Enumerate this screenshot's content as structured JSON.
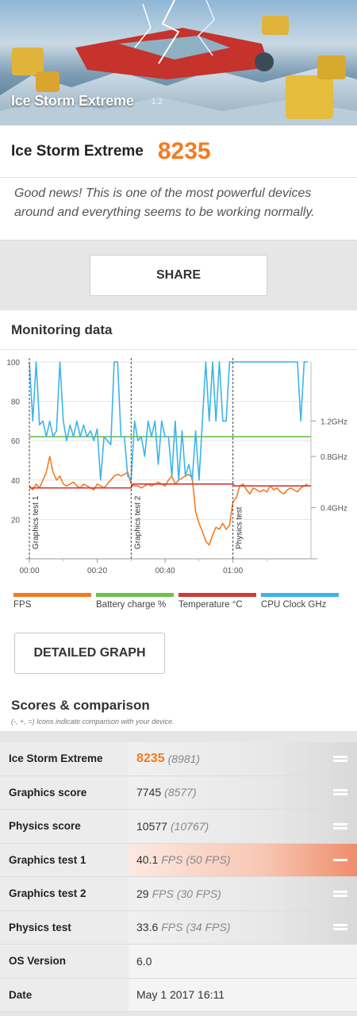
{
  "hero": {
    "title": "Ice Storm Extreme",
    "version": "1.2"
  },
  "result": {
    "name": "Ice Storm Extreme",
    "score": "8235",
    "message": "Good news! This is one of the most powerful devices around and everything seems to be working normally."
  },
  "share_label": "SHARE",
  "monitoring": {
    "title": "Monitoring data",
    "legend": [
      {
        "label": "FPS",
        "color": "#f47b20"
      },
      {
        "label": "Battery charge %",
        "color": "#6cc04a"
      },
      {
        "label": "Temperature °C",
        "color": "#d0393a"
      },
      {
        "label": "CPU Clock GHz",
        "color": "#3db4e8"
      }
    ],
    "detail_button": "DETAILED GRAPH"
  },
  "chart_data": {
    "type": "line",
    "y_left_ticks": [
      "100",
      "80",
      "60",
      "40",
      "20"
    ],
    "y_right_ticks": [
      "1.2GHz",
      "0.8GHz",
      "0.4GHz"
    ],
    "x_ticks": [
      "00:00",
      "00:20",
      "00:40",
      "01:00"
    ],
    "ylim": [
      0,
      100
    ],
    "xlim": [
      0,
      83
    ],
    "test_markers": [
      {
        "label": "Graphics test 1",
        "t": 0
      },
      {
        "label": "Graphics test 2",
        "t": 30
      },
      {
        "label": "Physics test",
        "t": 60
      }
    ],
    "series": [
      {
        "name": "FPS",
        "color": "#f47b20",
        "x": [
          0,
          1,
          2,
          3,
          4,
          5,
          6,
          7,
          8,
          9,
          10,
          11,
          12,
          13,
          14,
          15,
          16,
          17,
          18,
          19,
          20,
          21,
          22,
          23,
          24,
          25,
          26,
          27,
          28,
          29,
          30,
          31,
          32,
          33,
          34,
          35,
          36,
          37,
          38,
          39,
          40,
          41,
          42,
          43,
          44,
          45,
          46,
          47,
          48,
          49,
          50,
          51,
          52,
          53,
          54,
          55,
          56,
          57,
          58,
          59,
          60,
          61,
          62,
          63,
          64,
          65,
          66,
          67,
          68,
          69,
          70,
          71,
          72,
          73,
          74,
          75,
          76,
          77,
          78,
          79,
          80,
          81,
          82
        ],
        "y": [
          37,
          35,
          38,
          36,
          40,
          44,
          52,
          44,
          40,
          42,
          38,
          37,
          38,
          39,
          37,
          36,
          38,
          37,
          36,
          35,
          38,
          37,
          36,
          38,
          40,
          42,
          43,
          42,
          43,
          44,
          38,
          37,
          37,
          36,
          37,
          38,
          37,
          38,
          39,
          38,
          37,
          40,
          42,
          38,
          40,
          41,
          42,
          43,
          41,
          24,
          18,
          14,
          9,
          7,
          12,
          16,
          15,
          18,
          15,
          17,
          29,
          31,
          37,
          38,
          35,
          33,
          36,
          35,
          34,
          35,
          34,
          37,
          35,
          36,
          34,
          33,
          35,
          36,
          35,
          34,
          36,
          37,
          38
        ]
      },
      {
        "name": "Battery charge %",
        "color": "#6cc04a",
        "x": [
          0,
          83
        ],
        "y": [
          62,
          62
        ]
      },
      {
        "name": "Temperature °C",
        "color": "#d0393a",
        "x": [
          0,
          30,
          30.5,
          60,
          60.5,
          83
        ],
        "y": [
          36,
          36,
          38,
          38,
          37,
          37
        ]
      },
      {
        "name": "CPU Clock GHz",
        "color": "#3db4e8",
        "x": [
          0,
          1,
          2,
          3,
          4,
          5,
          6,
          7,
          8,
          9,
          10,
          11,
          12,
          13,
          14,
          15,
          16,
          17,
          18,
          19,
          20,
          21,
          22,
          23,
          24,
          25,
          26,
          27,
          28,
          29,
          30,
          31,
          32,
          33,
          34,
          35,
          36,
          37,
          38,
          39,
          40,
          41,
          42,
          43,
          44,
          45,
          46,
          47,
          48,
          49,
          50,
          51,
          52,
          53,
          54,
          55,
          56,
          57,
          58,
          59,
          60,
          61,
          62,
          63,
          64,
          65,
          66,
          67,
          68,
          69,
          70,
          71,
          72,
          73,
          74,
          75,
          76,
          77,
          78,
          79,
          80,
          81,
          82
        ],
        "y": [
          100,
          70,
          100,
          68,
          70,
          62,
          70,
          62,
          65,
          100,
          70,
          60,
          68,
          62,
          70,
          62,
          68,
          62,
          65,
          60,
          66,
          40,
          62,
          60,
          58,
          100,
          100,
          62,
          62,
          42,
          40,
          70,
          60,
          62,
          52,
          70,
          62,
          70,
          48,
          70,
          62,
          62,
          42,
          70,
          40,
          65,
          42,
          48,
          40,
          65,
          40,
          70,
          100,
          70,
          100,
          70,
          100,
          70,
          70,
          100,
          100,
          100,
          100,
          100,
          100,
          100,
          100,
          100,
          100,
          100,
          100,
          100,
          100,
          100,
          100,
          100,
          100,
          100,
          100,
          100,
          70,
          100,
          100
        ]
      }
    ]
  },
  "comparison": {
    "title": "Scores & comparison",
    "subtitle": "(-, +, =) Icons indicate comparison with your device.",
    "rows": [
      {
        "label": "Ice Storm Extreme",
        "value": "8235",
        "unit": "",
        "compare": "(8981)",
        "style": "score"
      },
      {
        "label": "Graphics score",
        "value": "7745",
        "unit": "",
        "compare": "(8577)",
        "style": "normal"
      },
      {
        "label": "Physics score",
        "value": "10577",
        "unit": "",
        "compare": "(10767)",
        "style": "normal"
      },
      {
        "label": "Graphics test 1",
        "value": "40.1",
        "unit": "FPS",
        "compare": "(50 FPS)",
        "style": "warn"
      },
      {
        "label": "Graphics test 2",
        "value": "29",
        "unit": "FPS",
        "compare": "(30 FPS)",
        "style": "normal"
      },
      {
        "label": "Physics test",
        "value": "33.6",
        "unit": "FPS",
        "compare": "(34 FPS)",
        "style": "normal"
      },
      {
        "label": "OS Version",
        "value": "6.0",
        "unit": "",
        "compare": "",
        "style": "plain"
      },
      {
        "label": "Date",
        "value": "May 1 2017 16:11",
        "unit": "",
        "compare": "",
        "style": "plain"
      }
    ]
  }
}
